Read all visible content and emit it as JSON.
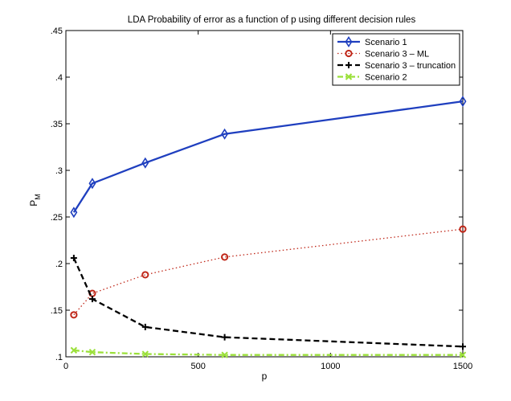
{
  "chart_data": {
    "type": "line",
    "title": "LDA Probability of error as a function of p using different decision rules",
    "xlabel": "p",
    "ylabel": "P",
    "ylabel_subscript": "M",
    "xlim": [
      0,
      1500
    ],
    "ylim": [
      0.1,
      0.45
    ],
    "xticks": [
      0,
      500,
      1000,
      1500
    ],
    "yticks": [
      0.1,
      0.15,
      0.2,
      0.25,
      0.3,
      0.35,
      0.4,
      0.45
    ],
    "grid": false,
    "legend_position": "top-right",
    "x": [
      30,
      100,
      300,
      600,
      1500
    ],
    "series": [
      {
        "name": "Scenario 1",
        "values": [
          0.255,
          0.286,
          0.308,
          0.339,
          0.374
        ],
        "color": "#1f3fbf",
        "line_style": "solid",
        "marker": "diamond"
      },
      {
        "name": "Scenario 3 – ML",
        "values": [
          0.145,
          0.168,
          0.188,
          0.207,
          0.237
        ],
        "color": "#c0281a",
        "line_style": "dotted",
        "marker": "circle"
      },
      {
        "name": "Scenario 3 – truncation",
        "values": [
          0.206,
          0.162,
          0.132,
          0.121,
          0.111
        ],
        "color": "#000000",
        "line_style": "dashed",
        "marker": "plus"
      },
      {
        "name": "Scenario 2",
        "values": [
          0.107,
          0.105,
          0.103,
          0.102,
          0.102
        ],
        "color": "#9be03a",
        "line_style": "dashdot",
        "marker": "x"
      }
    ]
  }
}
